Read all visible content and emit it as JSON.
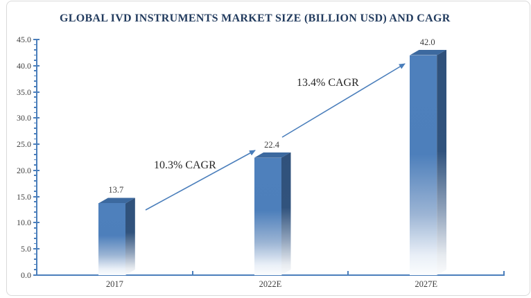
{
  "chart_data": {
    "type": "bar",
    "style": "3d-column",
    "title": "GLOBAL IVD INSTRUMENTS MARKET SIZE (BILLION USD) AND CAGR",
    "categories": [
      "2017",
      "2022E",
      "2027E"
    ],
    "values": [
      13.7,
      22.4,
      42.0
    ],
    "value_labels": [
      "13.7",
      "22.4",
      "42.0"
    ],
    "xlabel": "",
    "ylabel": "",
    "ylim": [
      0,
      45
    ],
    "ytick_step": 5,
    "ytick_minor_step": 1,
    "ytick_labels": [
      "0.0",
      "5.0",
      "10.0",
      "15.0",
      "20.0",
      "25.0",
      "30.0",
      "35.0",
      "40.0",
      "45.0"
    ],
    "grid": "off",
    "legend": "none",
    "annotations": [
      {
        "text": "10.3% CAGR",
        "from": "2017",
        "to": "2022E"
      },
      {
        "text": "13.4% CAGR",
        "from": "2022E",
        "to": "2027E"
      }
    ],
    "colors": {
      "bar_front": "#4e80bc",
      "bar_side": "#30517b",
      "bar_top": "#3c699f",
      "axis": "#4a7ebb",
      "arrow": "#4a7ebb",
      "title_text": "#233c5f",
      "label_text": "#3d3d3d",
      "frame_border": "#d9d9d9"
    }
  }
}
